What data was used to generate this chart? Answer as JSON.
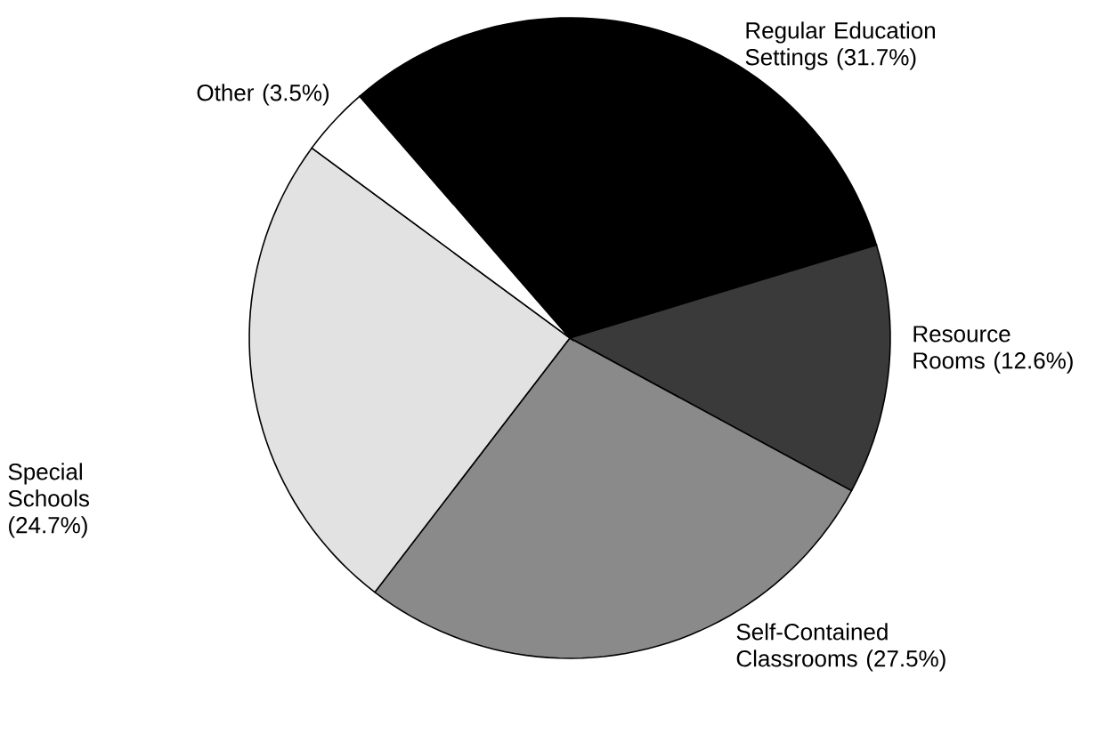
{
  "chart_data": {
    "type": "pie",
    "categories": [
      "Regular Education Settings",
      "Resource Rooms",
      "Self-Contained Classrooms",
      "Special Schools",
      "Other"
    ],
    "values": [
      31.7,
      12.6,
      27.5,
      24.7,
      3.5
    ],
    "value_labels": [
      "(31.7%)",
      "(12.6%)",
      "(27.5%)",
      "(24.7%)",
      "(3.5%)"
    ],
    "colors": [
      "#000000",
      "#3a3a3a",
      "#8a8a8a",
      "#e2e2e2",
      "#ffffff"
    ]
  }
}
